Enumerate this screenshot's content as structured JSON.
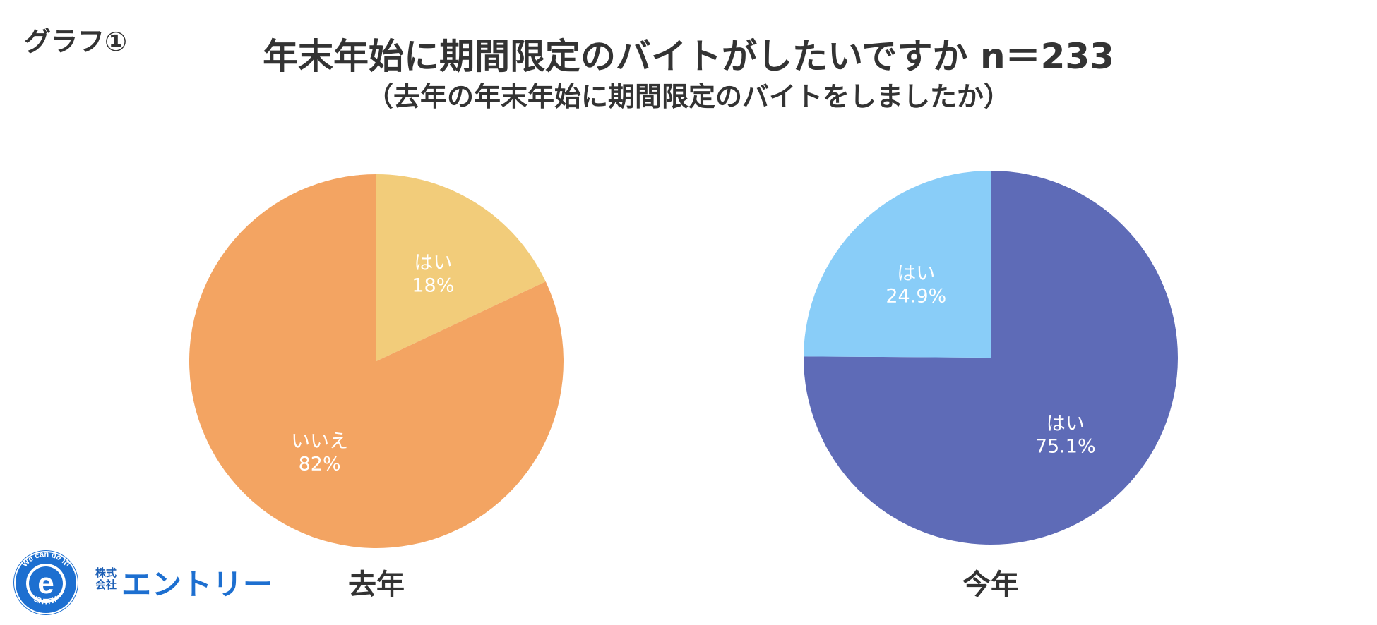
{
  "graph_label": "グラフ①",
  "title": "年末年始に期間限定のバイトがしたいですか n＝233",
  "subtitle": "（去年の年末年始に期間限定のバイトをしましたか）",
  "chart_data": [
    {
      "type": "pie",
      "caption": "去年",
      "slices": [
        {
          "label": "はい",
          "value": 18,
          "value_text": "18%",
          "color": "#f2cc7a"
        },
        {
          "label": "いいえ",
          "value": 82,
          "value_text": "82%",
          "color": "#f3a462"
        }
      ]
    },
    {
      "type": "pie",
      "caption": "今年",
      "slices": [
        {
          "label": "はい",
          "value": 75.1,
          "value_text": "75.1%",
          "color": "#5e6bb7"
        },
        {
          "label": "はい",
          "value": 24.9,
          "value_text": "24.9%",
          "color": "#89cdf8"
        }
      ]
    }
  ],
  "logo": {
    "ring_text_top": "We can do it!",
    "ring_text_bottom": "ENTRY",
    "letter": "e",
    "company_prefix": "株式会社",
    "company_name": "エントリー",
    "icon": "entry-logo-icon",
    "color": "#1d6fd0"
  }
}
